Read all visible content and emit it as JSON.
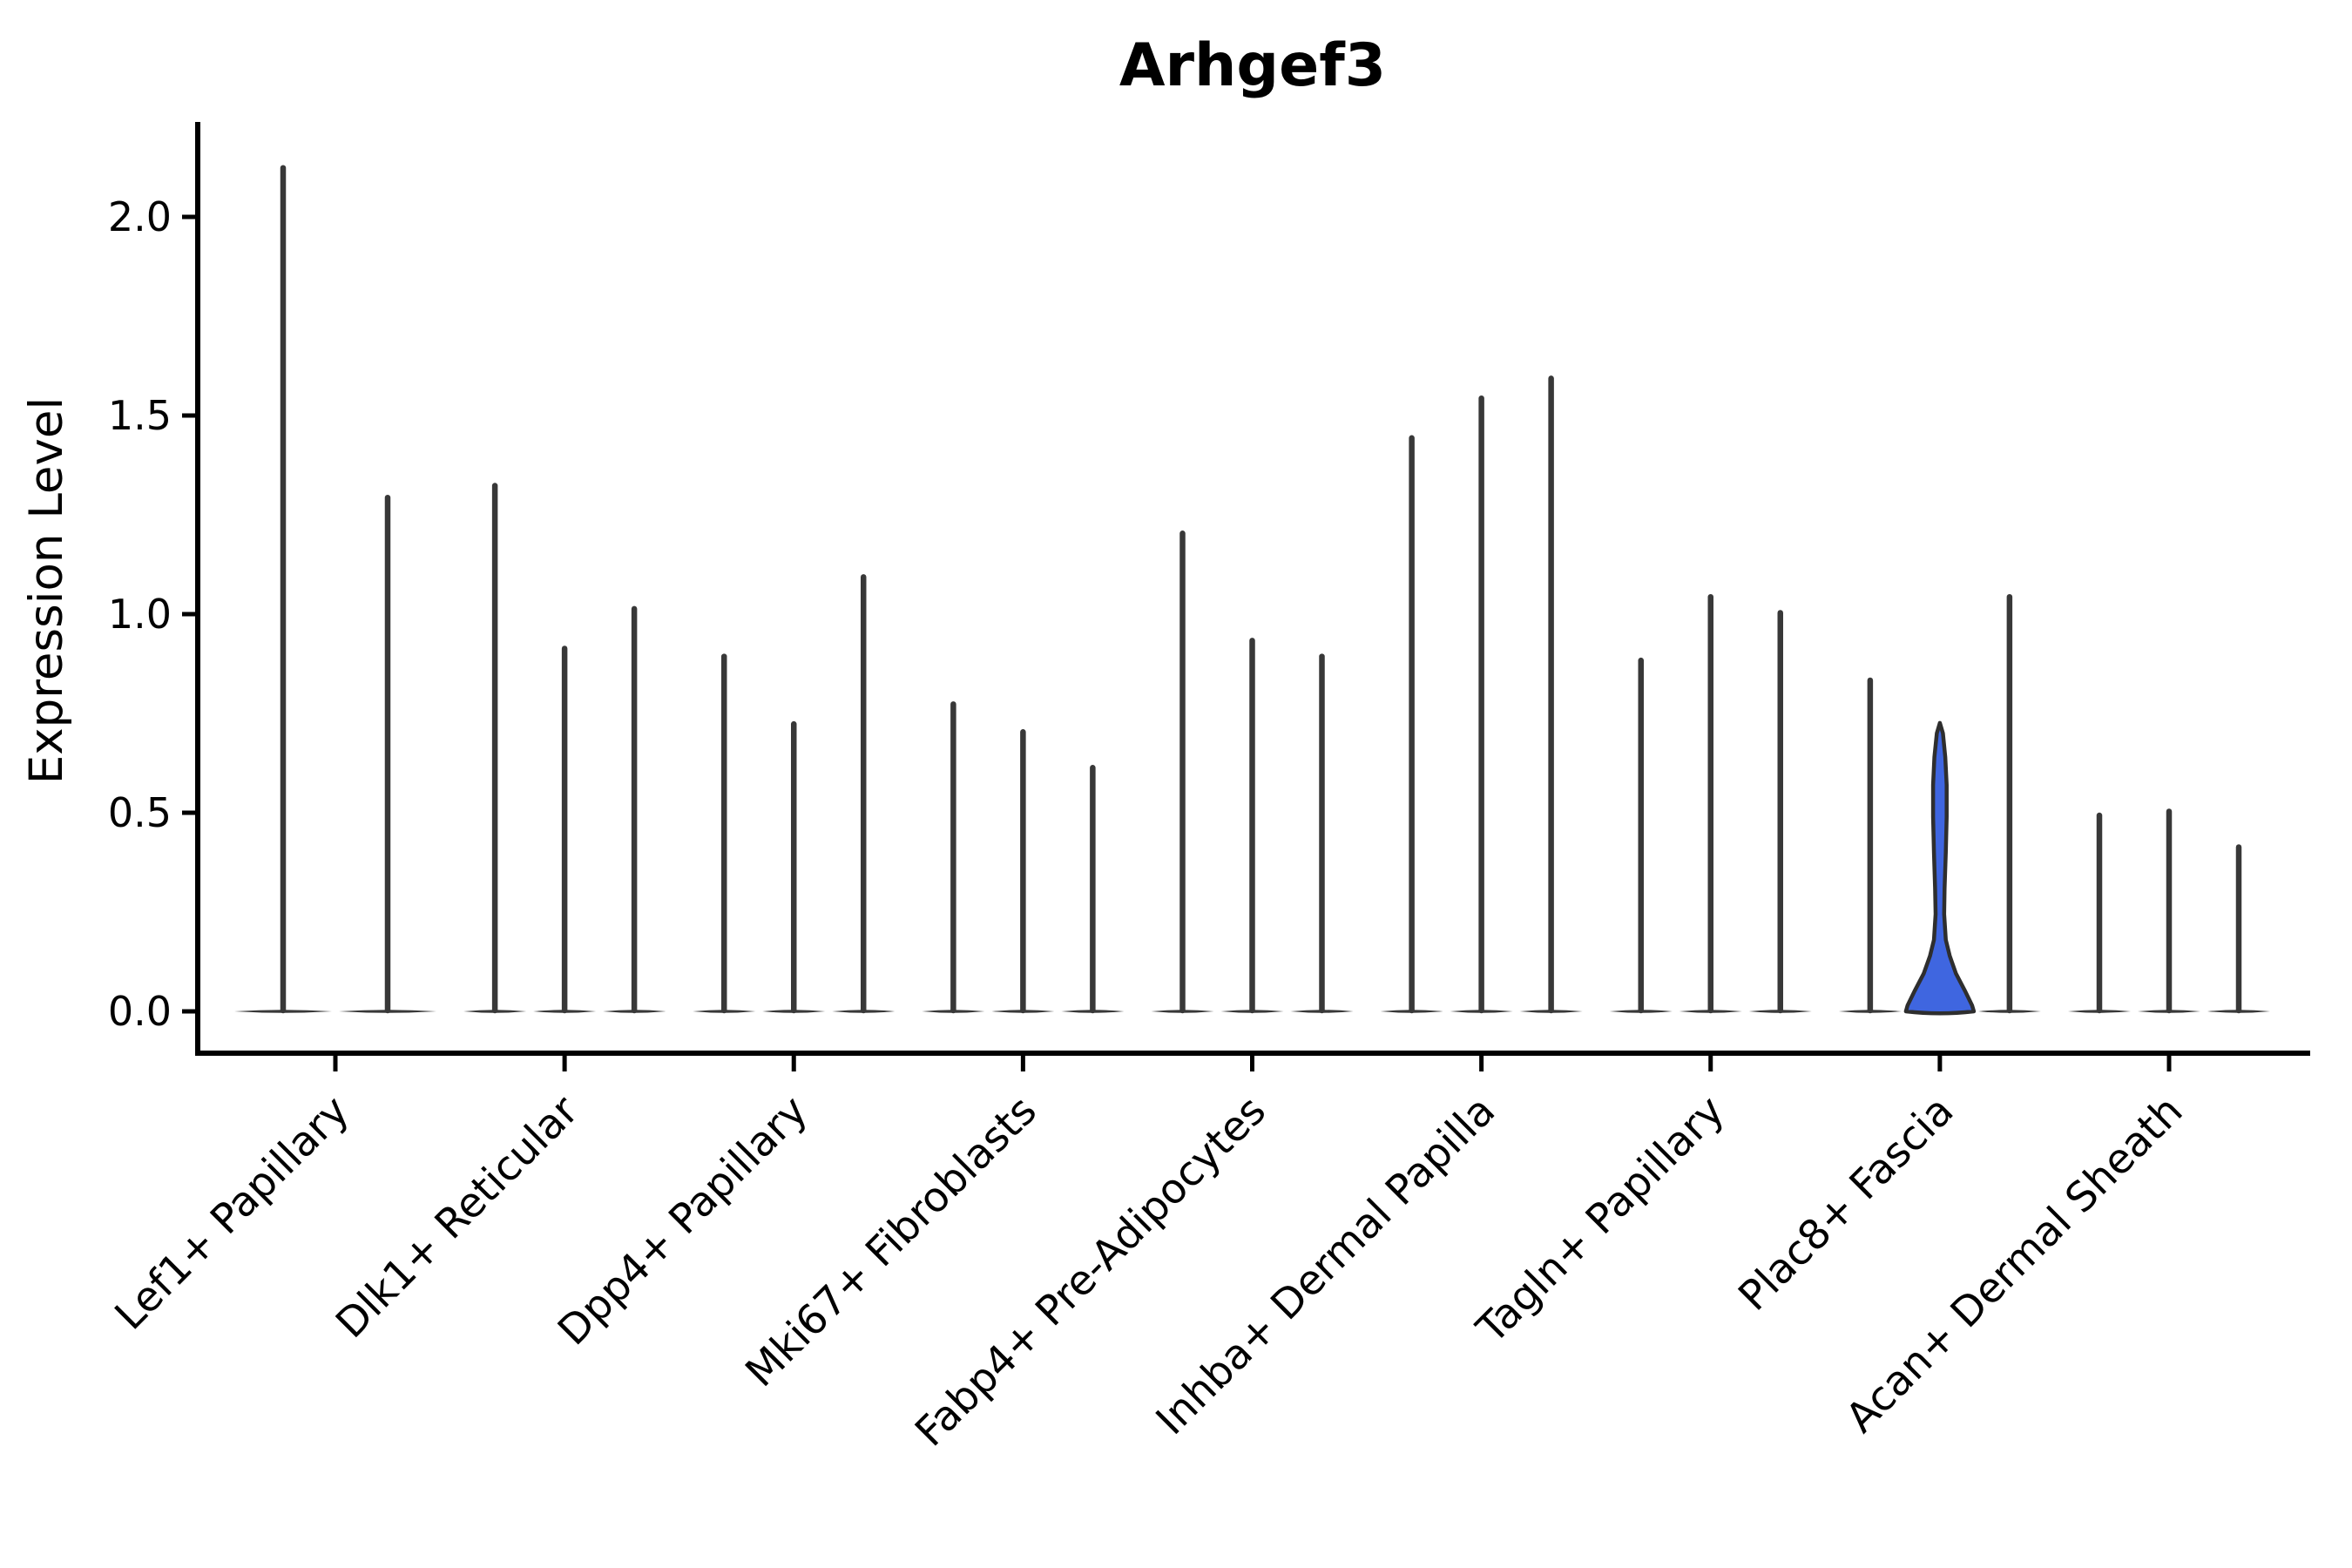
{
  "chart_data": {
    "type": "violin",
    "title": "Arhgef3",
    "ylabel": "Expression Level",
    "xlabel": "",
    "yticks": [
      0.0,
      0.5,
      1.0,
      1.5,
      2.0
    ],
    "ytick_labels": [
      "0.0",
      "0.5",
      "1.0",
      "1.5",
      "2.0"
    ],
    "ylim": [
      -0.105,
      2.24
    ],
    "grid": false,
    "legend": "none",
    "colors": {
      "violin": "#383838",
      "highlight_fill": "#3F66E0",
      "highlight_stroke": "#2E2E2E",
      "axis": "#000000",
      "text": "#000000",
      "background": "#FFFFFF"
    },
    "groups": [
      {
        "label": "Lef1+ Papillary",
        "violins": [
          {
            "max": 2.13
          },
          {
            "max": 1.3
          }
        ]
      },
      {
        "label": "Dlk1+ Reticular",
        "violins": [
          {
            "max": 1.33
          },
          {
            "max": 0.92
          },
          {
            "max": 1.02
          }
        ]
      },
      {
        "label": "Dpp4+ Papillary",
        "violins": [
          {
            "max": 0.9
          },
          {
            "max": 0.73
          },
          {
            "max": 1.1
          }
        ]
      },
      {
        "label": "Mki67+ Fibroblasts",
        "violins": [
          {
            "max": 0.78
          },
          {
            "max": 0.71
          },
          {
            "max": 0.62
          }
        ]
      },
      {
        "label": "Fabp4+ Pre-Adipocytes",
        "violins": [
          {
            "max": 1.21
          },
          {
            "max": 0.94
          },
          {
            "max": 0.9
          }
        ]
      },
      {
        "label": "Inhba+ Dermal Papilla",
        "violins": [
          {
            "max": 1.45
          },
          {
            "max": 1.55
          },
          {
            "max": 1.6
          }
        ]
      },
      {
        "label": "Tagln+ Papillary",
        "violins": [
          {
            "max": 0.89
          },
          {
            "max": 1.05
          },
          {
            "max": 1.01
          }
        ]
      },
      {
        "label": "Plac8+ Fascia",
        "violins": [
          {
            "max": 0.84
          },
          {
            "max": 0.73,
            "highlighted": true,
            "profile": [
              [
                0.726,
                0.0
              ],
              [
                0.7,
                0.09
              ],
              [
                0.64,
                0.16
              ],
              [
                0.57,
                0.2
              ],
              [
                0.49,
                0.2
              ],
              [
                0.4,
                0.175
              ],
              [
                0.31,
                0.14
              ],
              [
                0.245,
                0.125
              ],
              [
                0.18,
                0.175
              ],
              [
                0.14,
                0.29
              ],
              [
                0.095,
                0.475
              ],
              [
                0.05,
                0.75
              ],
              [
                0.015,
                0.95
              ],
              [
                0.0,
                1.0
              ]
            ]
          },
          {
            "max": 1.05
          }
        ]
      },
      {
        "label": "Acan+ Dermal Sheath",
        "violins": [
          {
            "max": 0.5
          },
          {
            "max": 0.51
          },
          {
            "max": 0.42
          }
        ]
      }
    ]
  }
}
